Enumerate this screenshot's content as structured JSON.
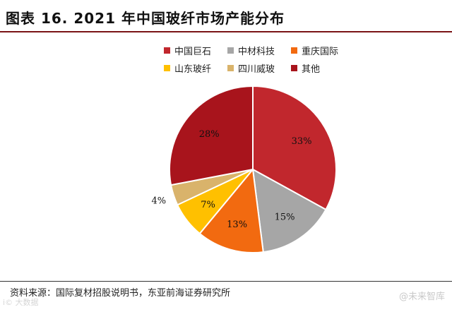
{
  "figure": {
    "title": "图表 16. 2021 年中国玻纤市场产能分布",
    "source": "资料来源：国际复材招股说明书，东亚前海证券研究所",
    "watermark_right": "@未来智库",
    "watermark_left": "i© 大数据"
  },
  "chart_data": {
    "type": "pie",
    "title": "2021 年中国玻纤市场产能分布",
    "legend_position": "top",
    "start_angle_deg": 0,
    "direction": "clockwise",
    "slices": [
      {
        "label": "中国巨石",
        "value": 33,
        "display": "33%",
        "color": "#c1272d"
      },
      {
        "label": "中材科技",
        "value": 15,
        "display": "15%",
        "color": "#a6a6a6"
      },
      {
        "label": "重庆国际",
        "value": 13,
        "display": "13%",
        "color": "#f26a10"
      },
      {
        "label": "山东玻纤",
        "value": 7,
        "display": "7%",
        "color": "#ffc000"
      },
      {
        "label": "四川威玻",
        "value": 4,
        "display": "4%",
        "color": "#d9b36b"
      },
      {
        "label": "其他",
        "value": 28,
        "display": "28%",
        "color": "#a8141c"
      }
    ]
  }
}
